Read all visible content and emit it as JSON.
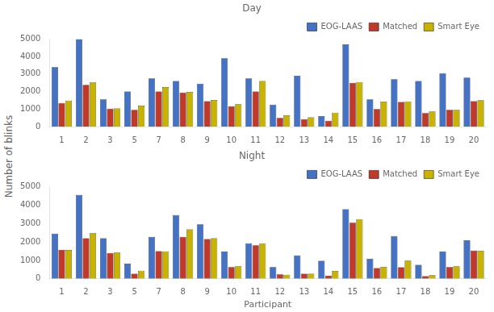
{
  "chart_data": [
    {
      "type": "bar",
      "title": "Day",
      "ylabel": "Number of blinks",
      "categories": [
        1,
        2,
        3,
        5,
        7,
        8,
        9,
        10,
        11,
        12,
        13,
        14,
        15,
        16,
        17,
        18,
        19,
        20
      ],
      "series": [
        {
          "name": "EOG-LAAS",
          "color": "#4472C4",
          "values": [
            3400,
            5000,
            1550,
            2000,
            2750,
            2600,
            2450,
            3900,
            2750,
            1250,
            2900,
            600,
            4700,
            1550,
            2700,
            2600,
            3050,
            2800
          ]
        },
        {
          "name": "Matched",
          "color": "#C0392B",
          "values": [
            1350,
            2380,
            1030,
            950,
            2000,
            1950,
            1450,
            1150,
            2000,
            500,
            430,
            330,
            2500,
            1000,
            1400,
            770,
            950,
            1450
          ]
        },
        {
          "name": "Smart Eye",
          "color": "#C8B400",
          "values": [
            1480,
            2520,
            1040,
            1200,
            2260,
            1980,
            1520,
            1280,
            2600,
            640,
            530,
            790,
            2540,
            1430,
            1440,
            860,
            950,
            1510
          ]
        }
      ],
      "ylim": [
        0,
        5000
      ],
      "yticks": [
        0,
        1000,
        2000,
        3000,
        4000,
        5000
      ],
      "grid": false,
      "legend": "upper right"
    },
    {
      "type": "bar",
      "title": "Night",
      "xlabel": "Participant",
      "categories": [
        1,
        2,
        3,
        5,
        7,
        8,
        9,
        10,
        11,
        12,
        13,
        14,
        15,
        16,
        17,
        18,
        19,
        20
      ],
      "series": [
        {
          "name": "EOG-LAAS",
          "color": "#4472C4",
          "values": [
            2450,
            4550,
            2200,
            820,
            2270,
            3450,
            2950,
            1480,
            1920,
            640,
            1270,
            970,
            3770,
            1080,
            2320,
            760,
            1480,
            2090
          ]
        },
        {
          "name": "Matched",
          "color": "#C0392B",
          "values": [
            1560,
            2200,
            1400,
            280,
            1500,
            2280,
            2160,
            640,
            1820,
            240,
            280,
            170,
            3040,
            580,
            620,
            140,
            640,
            1530
          ]
        },
        {
          "name": "Smart Eye",
          "color": "#C8B400",
          "values": [
            1560,
            2470,
            1420,
            440,
            1490,
            2680,
            2200,
            680,
            1900,
            220,
            280,
            430,
            3240,
            650,
            990,
            200,
            680,
            1520
          ]
        }
      ],
      "ylim": [
        0,
        5000
      ],
      "yticks": [
        0,
        1000,
        2000,
        3000,
        4000,
        5000
      ],
      "grid": false,
      "legend": "upper right"
    }
  ]
}
